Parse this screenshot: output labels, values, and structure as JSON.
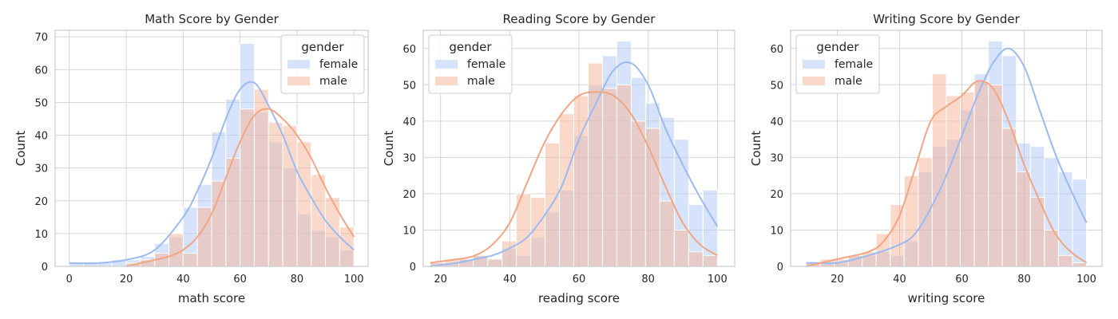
{
  "legend_title": "gender",
  "colors": {
    "female": "#aec7f5",
    "male": "#f6b496",
    "female_line": "#9bbaf3",
    "male_line": "#f2a582"
  },
  "chart_data": [
    {
      "type": "histogram",
      "title": "Math Score by Gender",
      "xlabel": "math score",
      "ylabel": "Count",
      "xlim": [
        -5,
        105
      ],
      "ylim": [
        0,
        72
      ],
      "xticks": [
        0,
        20,
        40,
        60,
        80,
        100
      ],
      "yticks": [
        0,
        10,
        20,
        30,
        40,
        50,
        60,
        70
      ],
      "grid": true,
      "legend": "top-right",
      "bin_start": 0,
      "bin_width": 5,
      "series": [
        {
          "name": "female",
          "counts": [
            1,
            1,
            1,
            2,
            2,
            3,
            7,
            9,
            18,
            25,
            41,
            51,
            68,
            47,
            38,
            30,
            16,
            11,
            9,
            5
          ],
          "kde_x": [
            0,
            10,
            20,
            30,
            40,
            45,
            50,
            55,
            60,
            65,
            70,
            75,
            80,
            85,
            90,
            95,
            100
          ],
          "kde_y": [
            1,
            1,
            2,
            5,
            15,
            23,
            33,
            45,
            54,
            56,
            49,
            40,
            29,
            21,
            14,
            9,
            5
          ]
        },
        {
          "name": "male",
          "counts": [
            0,
            0,
            0,
            0,
            1,
            2,
            4,
            10,
            4,
            18,
            26,
            33,
            48,
            54,
            44,
            43,
            38,
            28,
            21,
            12
          ],
          "kde_x": [
            20,
            25,
            30,
            35,
            40,
            45,
            50,
            55,
            60,
            65,
            70,
            75,
            80,
            85,
            90,
            95,
            100
          ],
          "kde_y": [
            0,
            1,
            2,
            3,
            5,
            9,
            16,
            27,
            38,
            46,
            48,
            45,
            40,
            33,
            24,
            16,
            9
          ]
        }
      ]
    },
    {
      "type": "histogram",
      "title": "Reading Score by Gender",
      "xlabel": "reading score",
      "ylabel": "Count",
      "xlim": [
        15,
        105
      ],
      "ylim": [
        0,
        65
      ],
      "xticks": [
        20,
        40,
        60,
        80,
        100
      ],
      "yticks": [
        0,
        10,
        20,
        30,
        40,
        50,
        60
      ],
      "grid": true,
      "legend": "top-left",
      "bin_start": 17,
      "bin_width": 4.15,
      "series": [
        {
          "name": "female",
          "counts": [
            1,
            1,
            2,
            3,
            2,
            5,
            3,
            8,
            15,
            21,
            36,
            50,
            58,
            62,
            52,
            45,
            41,
            35,
            17,
            21
          ],
          "kde_x": [
            17,
            25,
            30,
            35,
            40,
            45,
            50,
            55,
            60,
            65,
            70,
            75,
            80,
            85,
            90,
            95,
            100
          ],
          "kde_y": [
            0,
            1,
            2,
            3,
            5,
            8,
            14,
            22,
            35,
            45,
            54,
            56,
            50,
            38,
            28,
            19,
            11
          ]
        },
        {
          "name": "male",
          "counts": [
            1,
            2,
            2,
            3,
            2,
            7,
            20,
            19,
            34,
            42,
            47,
            56,
            49,
            50,
            40,
            38,
            18,
            10,
            4,
            3
          ],
          "kde_x": [
            17,
            25,
            30,
            35,
            40,
            45,
            50,
            55,
            60,
            65,
            70,
            75,
            80,
            85,
            90,
            95,
            100
          ],
          "kde_y": [
            1,
            2,
            3,
            6,
            12,
            23,
            34,
            42,
            47,
            48,
            47,
            42,
            33,
            22,
            12,
            6,
            3
          ]
        }
      ]
    },
    {
      "type": "histogram",
      "title": "Writing Score by Gender",
      "xlabel": "writing score",
      "ylabel": "Count",
      "xlim": [
        5,
        105
      ],
      "ylim": [
        0,
        65
      ],
      "xticks": [
        20,
        40,
        60,
        80,
        100
      ],
      "yticks": [
        0,
        10,
        20,
        30,
        40,
        50,
        60
      ],
      "grid": true,
      "legend": "top-left",
      "bin_start": 10,
      "bin_width": 4.5,
      "series": [
        {
          "name": "female",
          "counts": [
            1,
            1,
            1,
            3,
            3,
            4,
            3,
            7,
            26,
            33,
            35,
            43,
            53,
            62,
            58,
            34,
            33,
            30,
            26,
            24
          ],
          "kde_x": [
            10,
            20,
            30,
            40,
            45,
            50,
            55,
            60,
            65,
            70,
            75,
            80,
            85,
            90,
            95,
            100
          ],
          "kde_y": [
            1,
            1,
            3,
            6,
            9,
            16,
            25,
            36,
            47,
            56,
            60,
            55,
            43,
            31,
            21,
            12
          ]
        },
        {
          "name": "male",
          "counts": [
            1,
            2,
            2,
            3,
            4,
            9,
            17,
            25,
            30,
            53,
            47,
            48,
            51,
            50,
            38,
            26,
            19,
            10,
            3,
            1
          ],
          "kde_x": [
            10,
            20,
            30,
            35,
            40,
            45,
            50,
            55,
            60,
            65,
            70,
            75,
            80,
            85,
            90,
            95,
            100
          ],
          "kde_y": [
            0,
            2,
            4,
            7,
            14,
            27,
            40,
            44,
            47,
            51,
            49,
            40,
            28,
            18,
            9,
            4,
            1
          ]
        }
      ]
    }
  ]
}
